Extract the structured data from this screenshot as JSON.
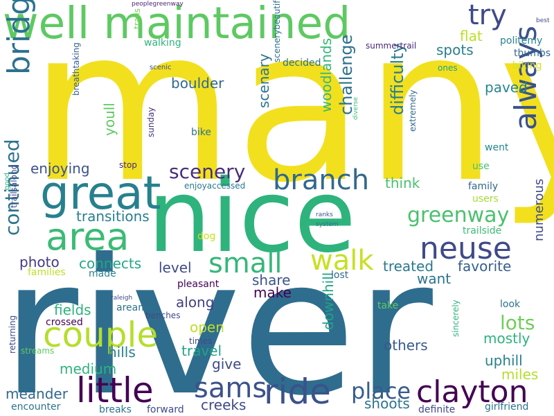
{
  "words": [
    {
      "text": "many",
      "color": "#f2e01e"
    },
    {
      "text": "river",
      "color": "#2f6d8e"
    },
    {
      "text": "nice",
      "color": "#2eb37c"
    },
    {
      "text": "well maintained",
      "color": "#5ec962"
    },
    {
      "text": "great",
      "color": "#27808e"
    },
    {
      "text": "area",
      "color": "#3bbb75"
    },
    {
      "text": "couple",
      "color": "#b5de2b"
    },
    {
      "text": "little",
      "color": "#440154"
    },
    {
      "text": "sams",
      "color": "#3b528b"
    },
    {
      "text": "ride",
      "color": "#3b528b"
    },
    {
      "text": "clayton",
      "color": "#440154"
    },
    {
      "text": "neuse",
      "color": "#3e4a89"
    },
    {
      "text": "always",
      "color": "#3b528b"
    },
    {
      "text": "bridges",
      "color": "#2c728e"
    },
    {
      "text": "branch",
      "color": "#31688e"
    },
    {
      "text": "small",
      "color": "#35b779"
    },
    {
      "text": "walk",
      "color": "#c8e020"
    },
    {
      "text": "place",
      "color": "#365c8d"
    },
    {
      "text": "try",
      "color": "#3e4a89"
    },
    {
      "text": "greenway",
      "color": "#4ac16d"
    },
    {
      "text": "continued",
      "color": "#2c728e"
    },
    {
      "text": "scenery",
      "color": "#472d7b"
    },
    {
      "text": "lots",
      "color": "#6ece58"
    },
    {
      "text": "spots",
      "color": "#277f8e"
    },
    {
      "text": "boulder",
      "color": "#31688e"
    },
    {
      "text": "flat",
      "color": "#bddf26"
    },
    {
      "text": "paved",
      "color": "#24868e"
    },
    {
      "text": "difficulty",
      "color": "#287c8e"
    },
    {
      "text": "challenge",
      "color": "#2c728e"
    },
    {
      "text": "woodlands",
      "color": "#35b779"
    },
    {
      "text": "scenary",
      "color": "#2c738e"
    },
    {
      "text": "youll",
      "color": "#5ec962"
    },
    {
      "text": "enjoying",
      "color": "#3b528b"
    },
    {
      "text": "think",
      "color": "#4ac16d"
    },
    {
      "text": "transitions",
      "color": "#277f8e"
    },
    {
      "text": "photo",
      "color": "#443983"
    },
    {
      "text": "connects",
      "color": "#22a785"
    },
    {
      "text": "level",
      "color": "#3e4a89"
    },
    {
      "text": "treated",
      "color": "#2a788e"
    },
    {
      "text": "favorite",
      "color": "#355f8d"
    },
    {
      "text": "share",
      "color": "#3b528b"
    },
    {
      "text": "want",
      "color": "#2c728e"
    },
    {
      "text": "numerous",
      "color": "#3e4a89"
    },
    {
      "text": "make",
      "color": "#440154"
    },
    {
      "text": "along",
      "color": "#424086"
    },
    {
      "text": "fields",
      "color": "#2eb37c"
    },
    {
      "text": "open",
      "color": "#bddf26"
    },
    {
      "text": "travel",
      "color": "#20a386"
    },
    {
      "text": "hills",
      "color": "#277f8e"
    },
    {
      "text": "mostly",
      "color": "#2eb37c"
    },
    {
      "text": "others",
      "color": "#38598c"
    },
    {
      "text": "uphill",
      "color": "#26828e"
    },
    {
      "text": "miles",
      "color": "#b5de2b"
    },
    {
      "text": "medium",
      "color": "#2eb37c"
    },
    {
      "text": "give",
      "color": "#3e4a89"
    },
    {
      "text": "downhill",
      "color": "#20a386"
    },
    {
      "text": "meander",
      "color": "#31688e"
    },
    {
      "text": "creeks",
      "color": "#3e4a89"
    },
    {
      "text": "shoots",
      "color": "#2c728e"
    },
    {
      "text": "peoplegreenway",
      "color": "#481f70"
    },
    {
      "text": "trails",
      "color": "#74d055"
    },
    {
      "text": "walking",
      "color": "#2eb37c"
    },
    {
      "text": "scenic",
      "color": "#3e4a89"
    },
    {
      "text": "decided",
      "color": "#2c728e"
    },
    {
      "text": "summertrail",
      "color": "#482878"
    },
    {
      "text": "politemy",
      "color": "#26828e"
    },
    {
      "text": "thumbs",
      "color": "#31688e"
    },
    {
      "text": "ones",
      "color": "#20a386"
    },
    {
      "text": "biking",
      "color": "#d8e219"
    },
    {
      "text": "best",
      "color": "#3e4a89"
    },
    {
      "text": "breathtaking",
      "color": "#355f8d"
    },
    {
      "text": "sunday",
      "color": "#46337e"
    },
    {
      "text": "bike",
      "color": "#2c728e"
    },
    {
      "text": "scenerybeautiful",
      "color": "#2c728e"
    },
    {
      "text": "diverse",
      "color": "#3bbb75"
    },
    {
      "text": "extremely",
      "color": "#31688e"
    },
    {
      "text": "went",
      "color": "#24868e"
    },
    {
      "text": "stop",
      "color": "#482878"
    },
    {
      "text": "enjoyaccessed",
      "color": "#2a788e"
    },
    {
      "text": "use",
      "color": "#4ac16d"
    },
    {
      "text": "good",
      "color": "#2eb37c"
    },
    {
      "text": "trailsalong",
      "color": "#3e4a89"
    },
    {
      "text": "family",
      "color": "#31688e"
    },
    {
      "text": "users",
      "color": "#a5db36"
    },
    {
      "text": "ranks",
      "color": "#3b528b"
    },
    {
      "text": "system",
      "color": "#2c728e"
    },
    {
      "text": "trailside",
      "color": "#3bbb75"
    },
    {
      "text": "dog",
      "color": "#c8e020"
    },
    {
      "text": "families",
      "color": "#c2df23"
    },
    {
      "text": "made",
      "color": "#26828e"
    },
    {
      "text": "lost",
      "color": "#31688e"
    },
    {
      "text": "pleasant",
      "color": "#440154"
    },
    {
      "text": "raleigh",
      "color": "#3e4a89"
    },
    {
      "text": "areamy",
      "color": "#2c728e"
    },
    {
      "text": "crossed",
      "color": "#440154"
    },
    {
      "text": "benches",
      "color": "#3e4a89"
    },
    {
      "text": "take",
      "color": "#5ec962"
    },
    {
      "text": "look",
      "color": "#2c728e"
    },
    {
      "text": "times",
      "color": "#3e4a89"
    },
    {
      "text": "returning",
      "color": "#3e4a89"
    },
    {
      "text": "streams",
      "color": "#5ec962"
    },
    {
      "text": "sincerely",
      "color": "#2eb37c"
    },
    {
      "text": "encounter",
      "color": "#2c728e"
    },
    {
      "text": "breaks",
      "color": "#2c728e"
    },
    {
      "text": "forward",
      "color": "#3e4a89"
    },
    {
      "text": "definite",
      "color": "#3e4a89"
    },
    {
      "text": "girlfriend",
      "color": "#2c728e"
    }
  ]
}
